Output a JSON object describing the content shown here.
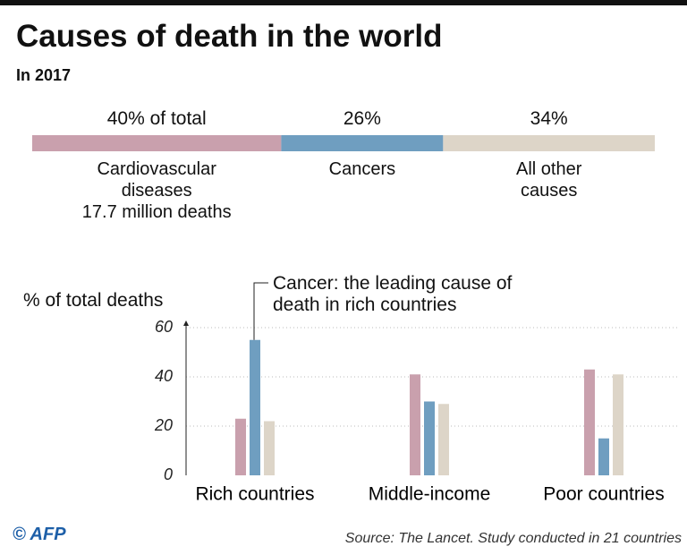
{
  "chart_data": [
    {
      "type": "stacked",
      "title": "Causes of death in the world",
      "subtitle": "In 2017",
      "xlim": [
        0,
        100
      ],
      "series": [
        {
          "name": "Cardiovascular diseases",
          "note": "17.7 million deaths",
          "color": "#c9a0ad",
          "values": [
            40
          ],
          "value_labels": [
            "40% of total"
          ]
        },
        {
          "name": "Cancers",
          "color": "#6f9ec0",
          "values": [
            26
          ],
          "value_labels": [
            "26%"
          ]
        },
        {
          "name": "All other causes",
          "color": "#ddd5c8",
          "values": [
            34
          ],
          "value_labels": [
            "34%"
          ]
        }
      ]
    },
    {
      "type": "bar",
      "ylabel": "% of total deaths",
      "annotation": "Cancer: the leading cause of death in rich countries",
      "categories": [
        "Rich countries",
        "Middle-income",
        "Poor countries"
      ],
      "series": [
        {
          "color": "#c9a0ad",
          "values": [
            23,
            41,
            43
          ]
        },
        {
          "color": "#6f9ec0",
          "values": [
            55,
            30,
            15
          ]
        },
        {
          "color": "#ddd5c8",
          "values": [
            22,
            29,
            41
          ]
        }
      ],
      "ylim": [
        0,
        60
      ],
      "yticks": [
        0,
        20,
        40,
        60
      ],
      "grid": true
    }
  ],
  "footer": {
    "credit": "© AFP",
    "source": "Source: The Lancet. Study conducted in 21 countries"
  }
}
